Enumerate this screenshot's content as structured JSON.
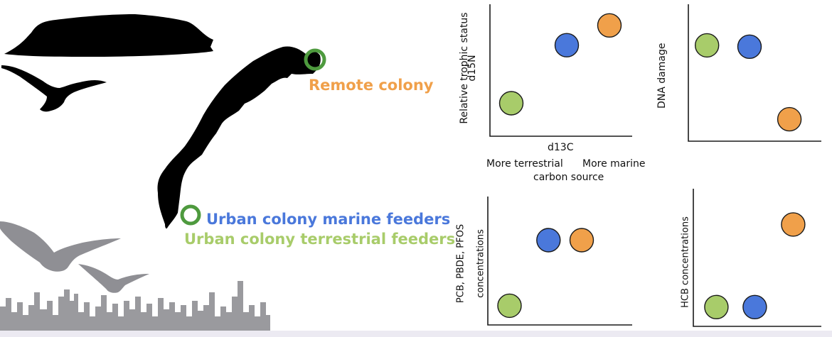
{
  "legend": {
    "remote": {
      "label": "Remote colony",
      "color": "#f0a04a"
    },
    "urban_marine": {
      "label": "Urban colony marine feeders",
      "color": "#4a78db"
    },
    "urban_terrestrial": {
      "label": "Urban colony terrestrial feeders",
      "color": "#a8cc6a"
    }
  },
  "colony_marker_color": "#4e9a3e",
  "chart_data": [
    {
      "type": "scatter",
      "ylabel_lines": [
        "Relative trophic status",
        "d15N"
      ],
      "xlabel": "d13C",
      "x_annotation": [
        "More terrestrial",
        "More marine"
      ],
      "x_annotation_sub": "carbon source",
      "series": [
        {
          "name": "Urban colony terrestrial feeders",
          "x": 0.15,
          "y": 0.25
        },
        {
          "name": "Urban colony marine feeders",
          "x": 0.54,
          "y": 0.69
        },
        {
          "name": "Remote colony",
          "x": 0.84,
          "y": 0.84
        }
      ]
    },
    {
      "type": "scatter",
      "ylabel_lines": [
        "DNA damage"
      ],
      "series": [
        {
          "name": "Urban colony terrestrial feeders",
          "x": 0.14,
          "y": 0.7
        },
        {
          "name": "Urban colony marine feeders",
          "x": 0.46,
          "y": 0.69
        },
        {
          "name": "Remote colony",
          "x": 0.76,
          "y": 0.16
        }
      ]
    },
    {
      "type": "scatter",
      "ylabel_lines": [
        "PCB, PBDE, PFOS",
        "concentrations"
      ],
      "series": [
        {
          "name": "Urban colony terrestrial feeders",
          "x": 0.15,
          "y": 0.15
        },
        {
          "name": "Urban colony marine feeders",
          "x": 0.42,
          "y": 0.66
        },
        {
          "name": "Remote colony",
          "x": 0.65,
          "y": 0.66
        }
      ]
    },
    {
      "type": "scatter",
      "ylabel_lines": [
        "HCB concentrations"
      ],
      "series": [
        {
          "name": "Urban colony terrestrial feeders",
          "x": 0.18,
          "y": 0.14
        },
        {
          "name": "Urban colony marine feeders",
          "x": 0.48,
          "y": 0.14
        },
        {
          "name": "Remote colony",
          "x": 0.78,
          "y": 0.74
        }
      ]
    }
  ]
}
